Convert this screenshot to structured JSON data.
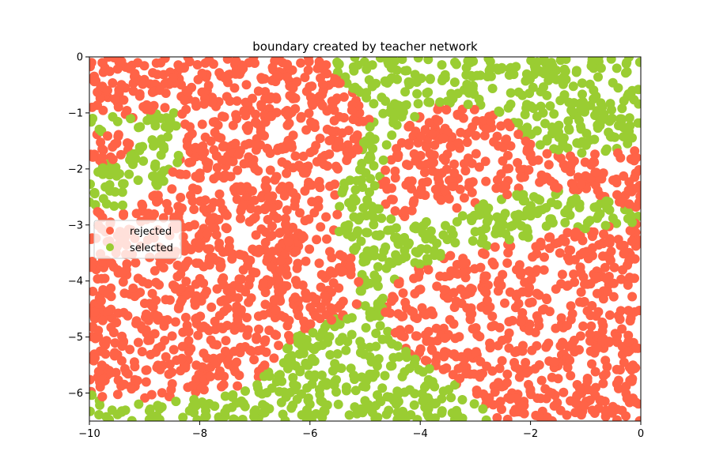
{
  "chart_data": {
    "type": "scatter",
    "title": "boundary created by teacher network",
    "xlabel": "",
    "ylabel": "",
    "xlim": [
      -10,
      0
    ],
    "ylim": [
      -6.5,
      0
    ],
    "x_ticks": [
      -10,
      -8,
      -6,
      -4,
      -2,
      0
    ],
    "y_ticks": [
      0,
      -1,
      -2,
      -3,
      -4,
      -5,
      -6
    ],
    "x_tick_labels": [
      "−10",
      "−8",
      "−6",
      "−4",
      "−2",
      "0"
    ],
    "y_tick_labels": [
      "0",
      "−1",
      "−2",
      "−3",
      "−4",
      "−5",
      "−6"
    ],
    "grid": false,
    "legend_position": "center-left",
    "point_count_approx": 3000,
    "series": [
      {
        "name": "rejected",
        "color": "#ff6347",
        "description_regions": "points outside the selected bands (top-left, center-left, lower-left, upper-right blob, lower-right)"
      },
      {
        "name": "selected",
        "color": "#9acd32",
        "regions": [
          {
            "kind": "polygon",
            "points": [
              [
                -10,
                -1.0
              ],
              [
                -9.6,
                -1.0
              ],
              [
                -9.2,
                -1.1
              ],
              [
                -8.8,
                -0.95
              ],
              [
                -8.45,
                -0.9
              ],
              [
                -8.3,
                -1.3
              ],
              [
                -8.35,
                -1.8
              ],
              [
                -8.6,
                -2.2
              ],
              [
                -9.0,
                -2.5
              ],
              [
                -9.5,
                -2.8
              ],
              [
                -10,
                -2.7
              ],
              [
                -10,
                -2.0
              ],
              [
                -9.3,
                -1.75
              ],
              [
                -9.0,
                -1.4
              ],
              [
                -9.5,
                -1.3
              ],
              [
                -10,
                -1.4
              ]
            ]
          },
          {
            "kind": "polygon",
            "points": [
              [
                -5.5,
                0
              ],
              [
                0,
                0
              ],
              [
                0,
                -1.6
              ],
              [
                -0.4,
                -1.7
              ],
              [
                -1.0,
                -1.75
              ],
              [
                -1.6,
                -1.7
              ],
              [
                -2.0,
                -1.5
              ],
              [
                -2.5,
                -1.1
              ],
              [
                -3.0,
                -0.85
              ],
              [
                -3.6,
                -0.85
              ],
              [
                -4.0,
                -0.95
              ],
              [
                -4.2,
                -1.2
              ],
              [
                -4.5,
                -1.75
              ],
              [
                -4.8,
                -2.3
              ],
              [
                -4.6,
                -2.7
              ],
              [
                -4.3,
                -2.85
              ],
              [
                -3.8,
                -2.85
              ],
              [
                -3.2,
                -2.75
              ],
              [
                -2.7,
                -2.55
              ],
              [
                -2.0,
                -2.35
              ],
              [
                -1.3,
                -2.4
              ],
              [
                -0.6,
                -2.55
              ],
              [
                0,
                -2.75
              ],
              [
                0,
                -2.95
              ],
              [
                -0.5,
                -3.0
              ],
              [
                -1.2,
                -3.1
              ],
              [
                -2.0,
                -3.25
              ],
              [
                -2.8,
                -3.4
              ],
              [
                -3.6,
                -3.55
              ],
              [
                -4.2,
                -3.8
              ],
              [
                -4.6,
                -4.2
              ],
              [
                -4.7,
                -4.6
              ],
              [
                -4.2,
                -5.3
              ],
              [
                -3.6,
                -5.7
              ],
              [
                -3.0,
                -6.1
              ],
              [
                -2.6,
                -6.5
              ],
              [
                -10,
                -6.5
              ],
              [
                -10,
                -6.0
              ],
              [
                -9.4,
                -6.2
              ],
              [
                -8.6,
                -6.15
              ],
              [
                -7.8,
                -5.95
              ],
              [
                -7.0,
                -5.85
              ],
              [
                -6.6,
                -5.4
              ],
              [
                -6.2,
                -4.95
              ],
              [
                -5.6,
                -4.7
              ],
              [
                -5.2,
                -4.6
              ],
              [
                -5.05,
                -4.0
              ],
              [
                -5.25,
                -3.5
              ],
              [
                -5.5,
                -3.1
              ],
              [
                -5.5,
                -2.4
              ],
              [
                -5.1,
                -1.7
              ],
              [
                -4.9,
                -1.1
              ],
              [
                -5.2,
                -0.6
              ],
              [
                -5.6,
                -0.2
              ]
            ]
          },
          {
            "kind": "polygon",
            "points": [
              [
                -3.3,
                -5.1
              ],
              [
                -3.15,
                -5.1
              ],
              [
                -3.15,
                -5.35
              ],
              [
                -3.3,
                -5.35
              ]
            ]
          }
        ]
      }
    ]
  }
}
